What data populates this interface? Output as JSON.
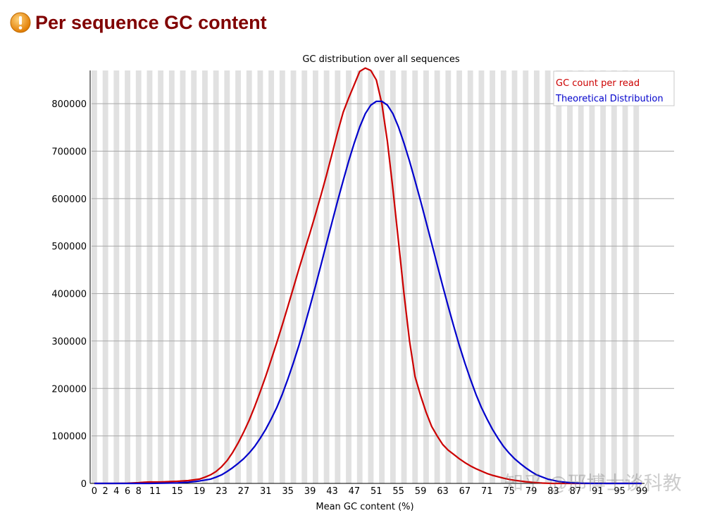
{
  "header": {
    "title": "Per sequence GC content",
    "status_icon": "warning-icon",
    "status_color": "#f39c12"
  },
  "watermark": "知乎 @邢博士谈科教",
  "chart_data": {
    "type": "line",
    "title": "GC distribution over all sequences",
    "xlabel": "Mean GC content (%)",
    "ylabel": "",
    "xlim": [
      0,
      100
    ],
    "ylim": [
      0,
      870000
    ],
    "x_tick_labels": [
      0,
      2,
      4,
      6,
      8,
      11,
      15,
      19,
      23,
      27,
      31,
      35,
      39,
      43,
      47,
      51,
      55,
      59,
      63,
      67,
      71,
      75,
      79,
      83,
      87,
      91,
      95,
      99
    ],
    "y_ticks": [
      0,
      100000,
      200000,
      300000,
      400000,
      500000,
      600000,
      700000,
      800000
    ],
    "grid": true,
    "legend_position": "top-right",
    "series": [
      {
        "name": "GC count per read",
        "color": "#cc0000",
        "x": [
          0,
          2,
          4,
          6,
          8,
          9,
          10,
          11,
          12,
          13,
          15,
          17,
          19,
          20,
          21,
          22,
          23,
          24,
          25,
          26,
          27,
          28,
          29,
          30,
          31,
          32,
          33,
          34,
          35,
          36,
          37,
          38,
          39,
          40,
          41,
          42,
          43,
          44,
          45,
          46,
          47,
          48,
          49,
          50,
          51,
          52,
          53,
          54,
          55,
          56,
          57,
          58,
          59,
          60,
          61,
          62,
          63,
          64,
          65,
          66,
          67,
          68,
          69,
          70,
          71,
          72,
          73,
          74,
          75,
          76,
          77,
          78,
          79,
          80,
          81,
          82,
          83,
          85,
          87,
          89,
          91,
          93,
          95,
          97,
          99
        ],
        "values": [
          0,
          0,
          0,
          500,
          1500,
          2500,
          3000,
          3000,
          3000,
          3500,
          4500,
          6000,
          9000,
          13000,
          18000,
          25000,
          35000,
          48000,
          65000,
          85000,
          108000,
          133000,
          162000,
          193000,
          226000,
          261000,
          297000,
          334000,
          373000,
          412000,
          452000,
          490000,
          528000,
          567000,
          608000,
          650000,
          695000,
          740000,
          782000,
          812000,
          840000,
          868000,
          875000,
          870000,
          850000,
          800000,
          720000,
          620000,
          510000,
          400000,
          300000,
          225000,
          185000,
          150000,
          120000,
          100000,
          82000,
          70000,
          61000,
          52000,
          44000,
          37000,
          31000,
          26000,
          21000,
          17000,
          14000,
          11000,
          8500,
          6500,
          5000,
          3500,
          2500,
          1500,
          800,
          300,
          0,
          0,
          0,
          0,
          0,
          0,
          0,
          0,
          0
        ]
      },
      {
        "name": "Theoretical Distribution",
        "color": "#0000cc",
        "x": [
          0,
          5,
          10,
          15,
          17,
          19,
          21,
          22,
          23,
          24,
          25,
          26,
          27,
          28,
          29,
          30,
          31,
          32,
          33,
          34,
          35,
          36,
          37,
          38,
          39,
          40,
          41,
          42,
          43,
          44,
          45,
          46,
          47,
          48,
          49,
          50,
          51,
          52,
          53,
          54,
          55,
          56,
          57,
          58,
          59,
          60,
          61,
          62,
          63,
          64,
          65,
          66,
          67,
          68,
          69,
          70,
          71,
          72,
          73,
          74,
          75,
          76,
          77,
          78,
          79,
          80,
          82,
          84,
          86,
          88,
          90,
          92,
          95,
          99
        ],
        "values": [
          0,
          0,
          0,
          1000,
          2500,
          5000,
          9000,
          13000,
          18000,
          25000,
          33000,
          42000,
          52000,
          64000,
          78000,
          95000,
          114000,
          136000,
          160000,
          188000,
          220000,
          254000,
          291000,
          331000,
          373000,
          416000,
          461000,
          506000,
          551000,
          595000,
          638000,
          679000,
          717000,
          751000,
          779000,
          797000,
          805000,
          805000,
          797000,
          779000,
          751000,
          717000,
          679000,
          638000,
          595000,
          551000,
          506000,
          461000,
          416000,
          373000,
          331000,
          291000,
          254000,
          220000,
          188000,
          160000,
          136000,
          114000,
          95000,
          78000,
          64000,
          52000,
          42000,
          33000,
          25000,
          18000,
          9000,
          4000,
          1500,
          500,
          0,
          0,
          0,
          0
        ]
      }
    ]
  }
}
